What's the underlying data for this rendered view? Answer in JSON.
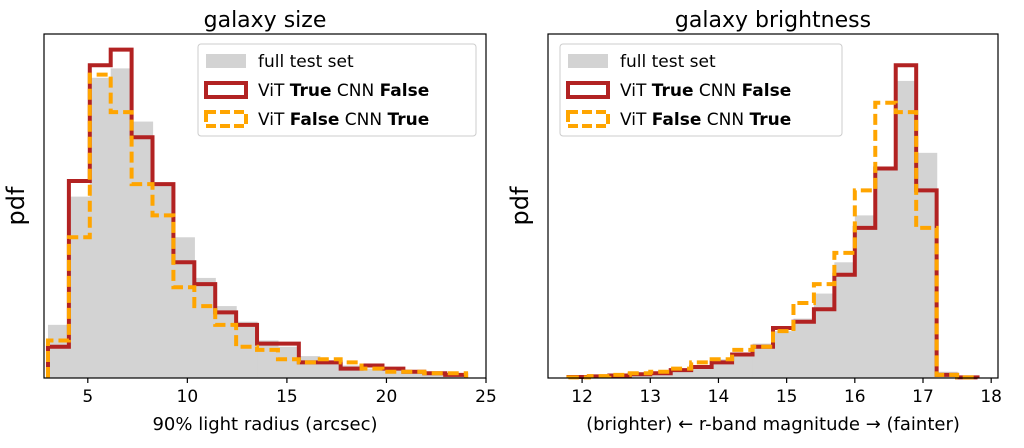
{
  "chart_data": [
    {
      "type": "histogram",
      "title": "galaxy size",
      "xlabel": "90% light radius (arcsec)",
      "ylabel": "pdf",
      "xlim": [
        2.8,
        25
      ],
      "ylim": [
        0,
        1.1
      ],
      "xticks": [
        5,
        10,
        15,
        20,
        25
      ],
      "bin_edges": [
        3,
        4.05,
        5.1,
        6.15,
        7.2,
        8.25,
        9.3,
        10.35,
        11.4,
        12.45,
        13.5,
        14.55,
        15.6,
        16.65,
        17.7,
        18.75,
        19.8,
        20.85,
        21.9,
        22.95,
        24
      ],
      "legend": [
        "full test set",
        "ViT True  CNN False",
        "ViT False CNN True"
      ],
      "legend_rich": [
        {
          "parts": [
            {
              "t": "full test set",
              "b": false
            }
          ]
        },
        {
          "parts": [
            {
              "t": "ViT ",
              "b": false
            },
            {
              "t": "True",
              "b": true
            },
            {
              "t": "  CNN ",
              "b": false
            },
            {
              "t": "False",
              "b": true
            }
          ]
        },
        {
          "parts": [
            {
              "t": "ViT ",
              "b": false
            },
            {
              "t": "False",
              "b": true
            },
            {
              "t": " CNN ",
              "b": false
            },
            {
              "t": "True",
              "b": true
            }
          ]
        }
      ],
      "series": [
        {
          "name": "full test set",
          "style": "fill",
          "color": "#d3d3d3",
          "values": [
            0.17,
            0.58,
            0.96,
            0.99,
            0.82,
            0.62,
            0.45,
            0.32,
            0.23,
            0.18,
            0.12,
            0.1,
            0.07,
            0.05,
            0.04,
            0.03,
            0.025,
            0.02,
            0.015,
            0.01
          ]
        },
        {
          "name": "ViT True CNN False",
          "style": "solid",
          "color": "#b22222",
          "values": [
            0.1,
            0.63,
            1.0,
            1.05,
            0.77,
            0.62,
            0.37,
            0.3,
            0.21,
            0.17,
            0.11,
            0.11,
            0.05,
            0.05,
            0.03,
            0.04,
            0.03,
            0.02,
            0.015,
            0.01
          ]
        },
        {
          "name": "ViT False CNN True",
          "style": "dashed",
          "color": "#ffa500",
          "values": [
            0.12,
            0.45,
            0.97,
            0.85,
            0.62,
            0.52,
            0.29,
            0.23,
            0.17,
            0.1,
            0.09,
            0.06,
            0.05,
            0.06,
            0.05,
            0.03,
            0.02,
            0.02,
            0.015,
            0.015
          ]
        }
      ]
    },
    {
      "type": "histogram",
      "title": "galaxy brightness",
      "xlabel": "(brighter) ←  r-band magnitude  → (faint er)",
      "ylabel": "pdf",
      "xlim": [
        11.5,
        18.1
      ],
      "ylim": [
        0,
        1.1
      ],
      "xticks": [
        12,
        13,
        14,
        15,
        16,
        17,
        18
      ],
      "bin_edges": [
        11.8,
        12.1,
        12.4,
        12.7,
        13.0,
        13.3,
        13.6,
        13.9,
        14.2,
        14.5,
        14.8,
        15.1,
        15.4,
        15.7,
        16.0,
        16.3,
        16.6,
        16.9,
        17.2,
        17.5,
        17.8
      ],
      "legend": [
        "full test set",
        "ViT True  CNN False",
        "ViT False CNN True"
      ],
      "legend_rich": [
        {
          "parts": [
            {
              "t": "full test set",
              "b": false
            }
          ]
        },
        {
          "parts": [
            {
              "t": "ViT ",
              "b": false
            },
            {
              "t": "True",
              "b": true
            },
            {
              "t": "  CNN ",
              "b": false
            },
            {
              "t": "False",
              "b": true
            }
          ]
        },
        {
          "parts": [
            {
              "t": "ViT ",
              "b": false
            },
            {
              "t": "False",
              "b": true
            },
            {
              "t": " CNN ",
              "b": false
            },
            {
              "t": "True",
              "b": true
            }
          ]
        }
      ],
      "series": [
        {
          "name": "full test set",
          "style": "fill",
          "color": "#d3d3d3",
          "values": [
            0.005,
            0.007,
            0.01,
            0.015,
            0.02,
            0.03,
            0.04,
            0.06,
            0.08,
            0.11,
            0.15,
            0.19,
            0.27,
            0.37,
            0.52,
            0.67,
            0.95,
            0.72,
            0.02,
            0.005
          ]
        },
        {
          "name": "ViT True CNN False",
          "style": "solid",
          "color": "#b22222",
          "values": [
            0.003,
            0.005,
            0.008,
            0.012,
            0.015,
            0.025,
            0.035,
            0.05,
            0.075,
            0.1,
            0.16,
            0.18,
            0.22,
            0.33,
            0.48,
            0.67,
            1.0,
            0.6,
            0.01,
            0.002
          ]
        },
        {
          "name": "ViT False CNN True",
          "style": "dashed",
          "color": "#ffa500",
          "values": [
            0.002,
            0.006,
            0.01,
            0.015,
            0.02,
            0.03,
            0.05,
            0.06,
            0.09,
            0.1,
            0.15,
            0.24,
            0.3,
            0.4,
            0.6,
            0.88,
            0.85,
            0.48,
            0.01,
            0.002
          ]
        }
      ]
    }
  ]
}
